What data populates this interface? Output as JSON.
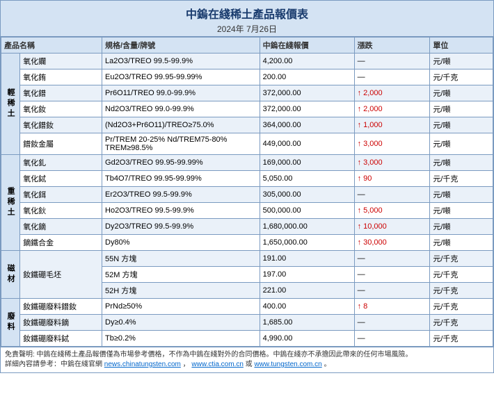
{
  "header": {
    "title": "中鎢在綫稀土產品報價表",
    "date": "2024年 7月26日"
  },
  "columns": {
    "name": "產品名稱",
    "spec": "規格/含量/牌號",
    "price": "中鎢在綫報價",
    "change": "漲跌",
    "unit": "單位"
  },
  "categories": [
    {
      "label": "輕稀土",
      "rows": [
        {
          "name": "氧化鑭",
          "spec": "La2O3/TREO 99.5-99.9%",
          "price": "4,200.00",
          "change": "—",
          "unit": "元/噸"
        },
        {
          "name": "氧化銪",
          "spec": "Eu2O3/TREO 99.95-99.99%",
          "price": "200.00",
          "change": "—",
          "unit": "元/千克"
        },
        {
          "name": "氧化鐠",
          "spec": "Pr6O11/TREO 99.0-99.9%",
          "price": "372,000.00",
          "change": "↑ 2,000",
          "unit": "元/噸"
        },
        {
          "name": "氧化釹",
          "spec": "Nd2O3/TREO 99.0-99.9%",
          "price": "372,000.00",
          "change": "↑ 2,000",
          "unit": "元/噸"
        },
        {
          "name": "氧化鐠釹",
          "spec": "(Nd2O3+Pr6O11)/TREO≥75.0%",
          "price": "364,000.00",
          "change": "↑ 1,000",
          "unit": "元/噸"
        },
        {
          "name": "鐠釹金屬",
          "spec": "Pr/TREM 20-25% Nd/TREM75-80% TREM≥98.5%",
          "price": "449,000.00",
          "change": "↑ 3,000",
          "unit": "元/噸"
        }
      ]
    },
    {
      "label": "重稀土",
      "rows": [
        {
          "name": "氧化釓",
          "spec": "Gd2O3/TREO 99.95-99.99%",
          "price": "169,000.00",
          "change": "↑ 3,000",
          "unit": "元/噸"
        },
        {
          "name": "氧化鋱",
          "spec": "Tb4O7/TREO 99.95-99.99%",
          "price": "5,050.00",
          "change": "↑ 90",
          "unit": "元/千克"
        },
        {
          "name": "氧化鉺",
          "spec": "Er2O3/TREO 99.5-99.9%",
          "price": "305,000.00",
          "change": "—",
          "unit": "元/噸"
        },
        {
          "name": "氧化鈥",
          "spec": "Ho2O3/TREO 99.5-99.9%",
          "price": "500,000.00",
          "change": "↑ 5,000",
          "unit": "元/噸"
        },
        {
          "name": "氧化鏑",
          "spec": "Dy2O3/TREO 99.5-99.9%",
          "price": "1,680,000.00",
          "change": "↑ 10,000",
          "unit": "元/噸"
        },
        {
          "name": "鏑鐵合金",
          "spec": "Dy80%",
          "price": "1,650,000.00",
          "change": "↑ 30,000",
          "unit": "元/噸"
        }
      ]
    },
    {
      "label": "磁材",
      "rows": [
        {
          "name": "釹鐵硼毛坯",
          "spec": "55N 方塊",
          "price": "191.00",
          "change": "—",
          "unit": "元/千克",
          "rowspan": 3
        },
        {
          "name": "",
          "spec": "52M 方塊",
          "price": "197.00",
          "change": "—",
          "unit": "元/千克"
        },
        {
          "name": "",
          "spec": "52H 方塊",
          "price": "221.00",
          "change": "—",
          "unit": "元/千克"
        }
      ]
    },
    {
      "label": "廢料",
      "rows": [
        {
          "name": "釹鐵硼廢料鐠釹",
          "spec": "PrNd≥50%",
          "price": "400.00",
          "change": "↑ 8",
          "unit": "元/千克"
        },
        {
          "name": "釹鐵硼廢料鏑",
          "spec": "Dy≥0.4%",
          "price": "1,685.00",
          "change": "—",
          "unit": "元/千克"
        },
        {
          "name": "釹鐵硼廢料鋱",
          "spec": "Tb≥0.2%",
          "price": "4,990.00",
          "change": "—",
          "unit": "元/千克"
        }
      ]
    }
  ],
  "footer": {
    "line1_prefix": "免責聲明: 中鎢在綫稀土產品報價僅為市場參考價格，不作為中鎢在綫對外的合同價格。中鎢在綫亦不承擔因此帶來的任何市場風險。",
    "line2_prefix": "詳細內容請參考：中鎢在綫官網 ",
    "link1": "news.chinatungsten.com",
    "sep": "，",
    "link2": "www.ctia.com.cn",
    "or": " 或 ",
    "link3": "www.tungsten.com.cn",
    "period": "。"
  },
  "colors": {
    "border": "#7a9ac0",
    "header_bg": "#d4e3f3",
    "row_alt": "#eaf1f9"
  }
}
